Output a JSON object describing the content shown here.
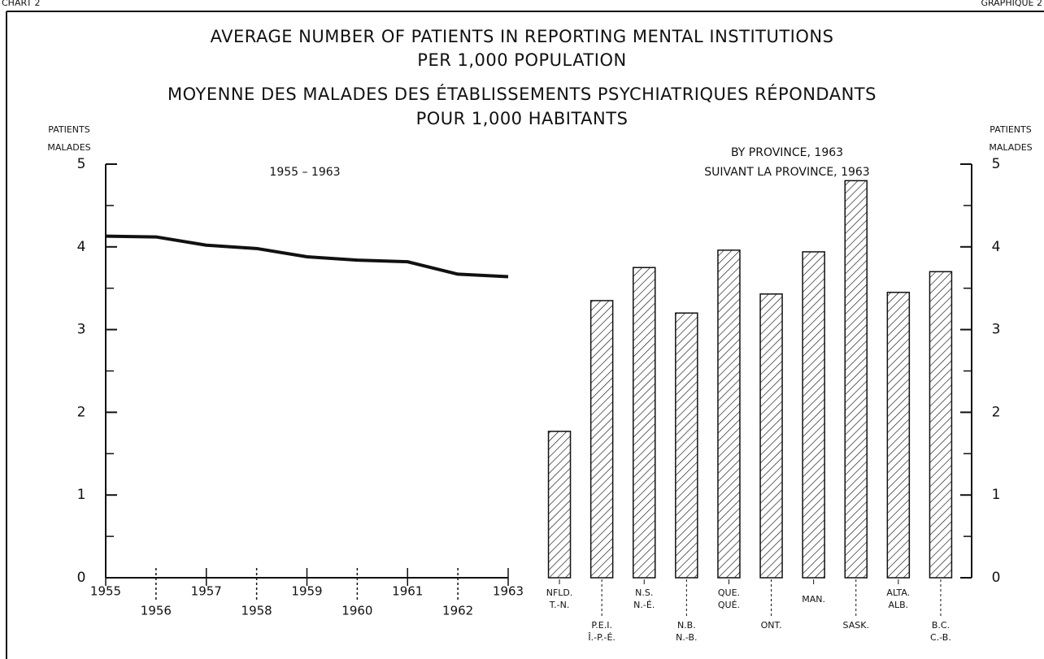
{
  "header": {
    "left": "CHART 2",
    "right": "GRAPHIQUE 2"
  },
  "title": [
    "AVERAGE NUMBER OF PATIENTS IN REPORTING MENTAL INSTITUTIONS",
    "PER 1,000 POPULATION",
    "MOYENNE DES MALADES DES ÉTABLISSEMENTS PSYCHIATRIQUES RÉPONDANTS",
    "POUR 1,000 HABITANTS"
  ],
  "chart_data": [
    {
      "type": "line",
      "subtitle": "1955 – 1963",
      "y_label": [
        "PATIENTS",
        "MALADES"
      ],
      "x": [
        1955,
        1956,
        1957,
        1958,
        1959,
        1960,
        1961,
        1962,
        1963
      ],
      "xlim": [
        1955,
        1963
      ],
      "series": [
        {
          "color": "#111111",
          "values": [
            4.13,
            4.12,
            4.02,
            3.98,
            3.88,
            3.84,
            3.82,
            3.67,
            3.64
          ]
        }
      ],
      "ylim": [
        0,
        5
      ],
      "yticks": [
        0,
        1,
        2,
        3,
        4,
        5
      ],
      "yminorticks": [
        0.5,
        1.5,
        2.5,
        3.5,
        4.5
      ]
    },
    {
      "type": "bar",
      "subtitle": [
        "BY PROVINCE, 1963",
        "SUIVANT LA PROVINCE, 1963"
      ],
      "y_label": [
        "PATIENTS",
        "MALADES"
      ],
      "categories": [
        [
          "NFLD.",
          "T.-N."
        ],
        [
          "P.E.I.",
          "Î.-P.-É."
        ],
        [
          "N.S.",
          "N.-É."
        ],
        [
          "N.B.",
          "N.-B."
        ],
        [
          "QUE.",
          "QUÉ."
        ],
        [
          "ONT."
        ],
        [
          "MAN."
        ],
        [
          "SASK."
        ],
        [
          "ALTA.",
          "ALB."
        ],
        [
          "B.C.",
          "C.-B."
        ]
      ],
      "values": [
        1.77,
        3.35,
        3.75,
        3.2,
        3.96,
        3.43,
        3.94,
        4.8,
        3.45,
        3.7
      ],
      "color": "#111111",
      "hatch": true,
      "ylim": [
        0,
        5
      ],
      "yticks": [
        0,
        1,
        2,
        3,
        4,
        5
      ],
      "yminorticks": [
        0.5,
        1.5,
        2.5,
        3.5,
        4.5
      ]
    }
  ]
}
